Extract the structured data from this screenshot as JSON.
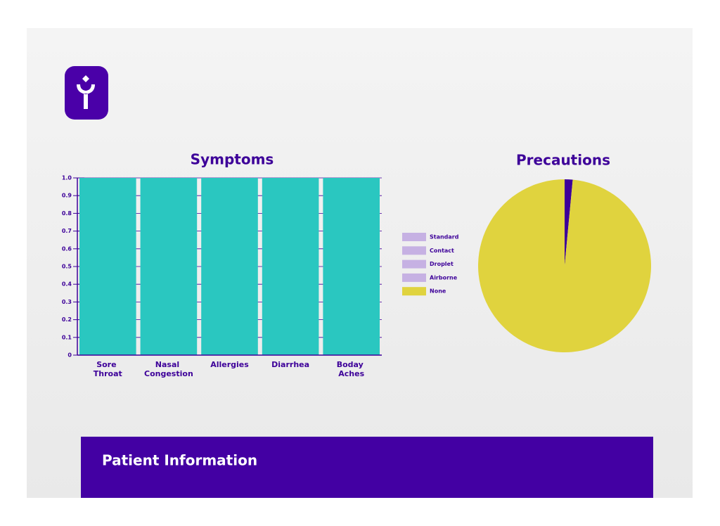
{
  "chart_data": [
    {
      "type": "bar",
      "title": "Symptoms",
      "categories": [
        "Sore Throat",
        "Nasal Congestion",
        "Allergies",
        "Diarrhea",
        "Boday Aches"
      ],
      "values": [
        1,
        1,
        1,
        1,
        1
      ],
      "color": "#2ac7c0",
      "ylim": [
        0,
        1
      ],
      "yticks": [
        0,
        0.1,
        0.2,
        0.3,
        0.4,
        0.5,
        0.6,
        0.7,
        0.8,
        0.9,
        {
          "value": 1,
          "label": "1.0"
        }
      ],
      "grid": true
    },
    {
      "type": "pie",
      "title": "Precautions",
      "categories": [
        "Standard",
        "Contact",
        "Droplet",
        "Airborne",
        "None"
      ],
      "values": [
        1.5,
        0,
        0,
        0,
        98.5
      ],
      "colors": [
        "#3d0099",
        "#c6b1e3",
        "#c6b1e3",
        "#c6b1e3",
        "#e0d33e"
      ],
      "legend_colors": [
        "#c6b1e3",
        "#c6b1e3",
        "#c6b1e3",
        "#c6b1e3",
        "#e0d33e"
      ],
      "legend": "left"
    }
  ],
  "panel": {
    "title": "Patient Information"
  }
}
